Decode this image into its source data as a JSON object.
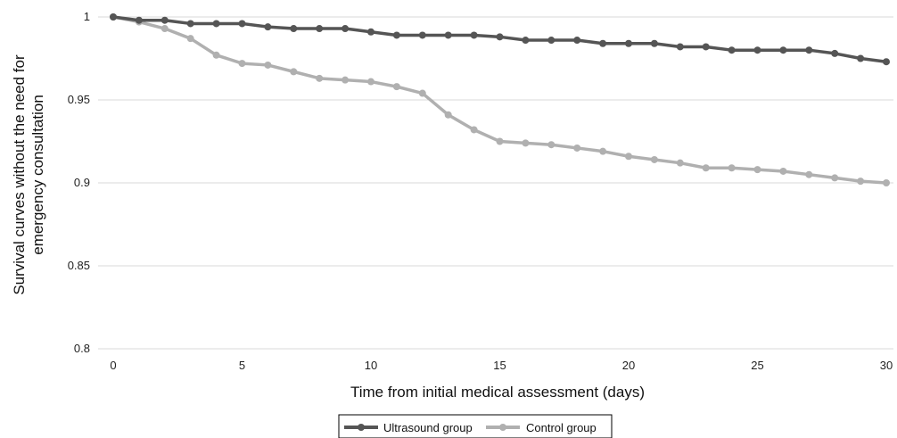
{
  "chart_data": {
    "type": "line",
    "title": "",
    "xlabel": "Time from initial medical assessment (days)",
    "ylabel_lines": [
      "Survival curves without the need for",
      "emergency consultation"
    ],
    "xlim": [
      0,
      30
    ],
    "ylim": [
      0.8,
      1.0
    ],
    "x_ticks": [
      0,
      5,
      10,
      15,
      20,
      25,
      30
    ],
    "x_tick_labels": [
      "0",
      "5",
      "10",
      "15",
      "20",
      "25",
      "30"
    ],
    "y_ticks": [
      0.8,
      0.85,
      0.9,
      0.95,
      1.0
    ],
    "y_tick_labels": [
      "0.8",
      "0.85",
      "0.9",
      "0.95",
      "1"
    ],
    "grid": "horizontal",
    "legend_position": "bottom-center",
    "x": [
      0,
      1,
      2,
      3,
      4,
      5,
      6,
      7,
      8,
      9,
      10,
      11,
      12,
      13,
      14,
      15,
      16,
      17,
      18,
      19,
      20,
      21,
      22,
      23,
      24,
      25,
      26,
      27,
      28,
      29,
      30
    ],
    "series": [
      {
        "name": "Ultrasound group",
        "color": "#555555",
        "values": [
          1.0,
          0.998,
          0.998,
          0.996,
          0.996,
          0.996,
          0.994,
          0.993,
          0.993,
          0.993,
          0.991,
          0.989,
          0.989,
          0.989,
          0.989,
          0.988,
          0.986,
          0.986,
          0.986,
          0.984,
          0.984,
          0.984,
          0.982,
          0.982,
          0.98,
          0.98,
          0.98,
          0.98,
          0.978,
          0.975,
          0.973
        ]
      },
      {
        "name": "Control group",
        "color": "#b0b0b0",
        "values": [
          1.0,
          0.997,
          0.993,
          0.987,
          0.977,
          0.972,
          0.971,
          0.967,
          0.963,
          0.962,
          0.961,
          0.958,
          0.954,
          0.941,
          0.932,
          0.925,
          0.924,
          0.923,
          0.921,
          0.919,
          0.916,
          0.914,
          0.912,
          0.909,
          0.909,
          0.908,
          0.907,
          0.905,
          0.903,
          0.901,
          0.9
        ]
      }
    ]
  }
}
